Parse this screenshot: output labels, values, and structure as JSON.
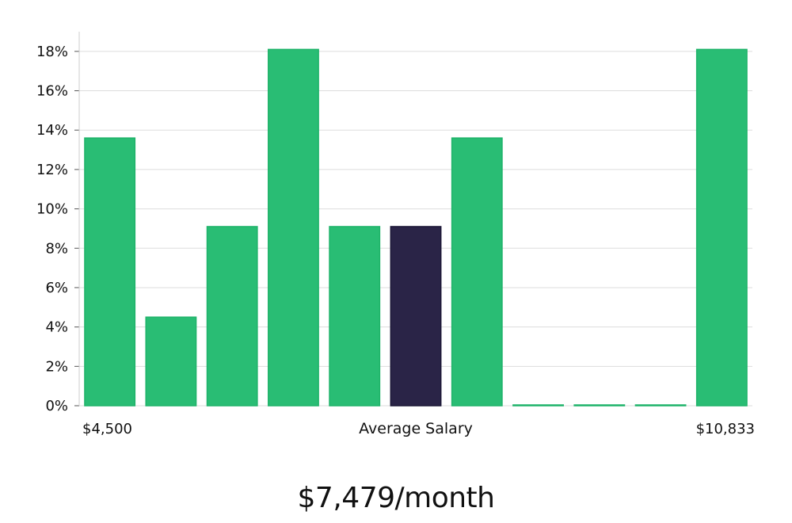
{
  "chart_data": {
    "type": "bar",
    "values": [
      13.6,
      4.5,
      9.1,
      18.1,
      9.1,
      9.1,
      13.6,
      0,
      0,
      0,
      18.1
    ],
    "highlight_index": 5,
    "ylim": [
      0,
      19
    ],
    "y_ticks": [
      "0%",
      "2%",
      "4%",
      "6%",
      "8%",
      "10%",
      "12%",
      "14%",
      "16%",
      "18%"
    ],
    "y_tick_values": [
      0,
      2,
      4,
      6,
      8,
      10,
      12,
      14,
      16,
      18
    ],
    "x_left_label": "$4,500",
    "x_right_label": "$10,833",
    "xlabel": "Average Salary",
    "grid": true,
    "colors": {
      "bar": "#29bd74",
      "bar_edge": "#1fb36a",
      "highlight": "#2a2447",
      "grid": "#dddddd",
      "axis": "#cccccc"
    }
  },
  "headline": "$7,479/month"
}
